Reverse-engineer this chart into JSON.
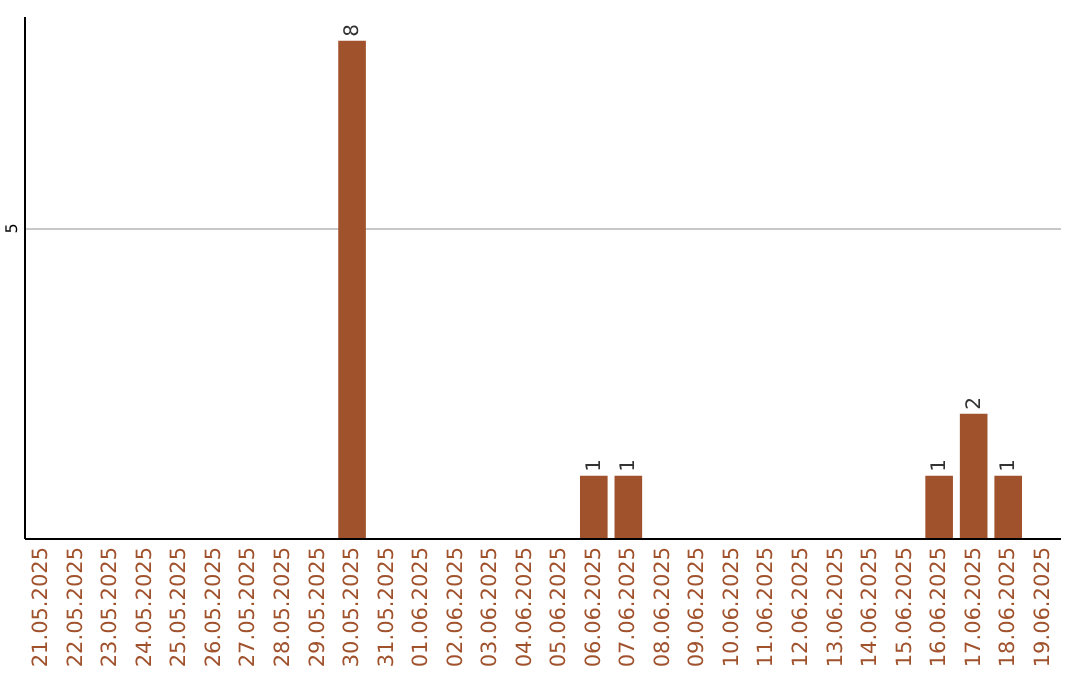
{
  "chart_data": {
    "type": "bar",
    "categories": [
      "21.05.2025",
      "22.05.2025",
      "23.05.2025",
      "24.05.2025",
      "25.05.2025",
      "26.05.2025",
      "27.05.2025",
      "28.05.2025",
      "29.05.2025",
      "30.05.2025",
      "31.05.2025",
      "01.06.2025",
      "02.06.2025",
      "03.06.2025",
      "04.06.2025",
      "05.06.2025",
      "06.06.2025",
      "07.06.2025",
      "08.06.2025",
      "09.06.2025",
      "10.06.2025",
      "11.06.2025",
      "12.06.2025",
      "13.06.2025",
      "14.06.2025",
      "15.06.2025",
      "16.06.2025",
      "17.06.2025",
      "18.06.2025",
      "19.06.2025"
    ],
    "values": [
      0,
      0,
      0,
      0,
      0,
      0,
      0,
      0,
      0,
      8,
      0,
      0,
      0,
      0,
      0,
      0,
      1,
      1,
      0,
      0,
      0,
      0,
      0,
      0,
      0,
      0,
      1,
      2,
      1,
      0
    ],
    "value_labels": [
      null,
      null,
      null,
      null,
      null,
      null,
      null,
      null,
      null,
      "8",
      null,
      null,
      null,
      null,
      null,
      null,
      "1",
      "1",
      null,
      null,
      null,
      null,
      null,
      null,
      null,
      null,
      "1",
      "2",
      "1",
      null
    ],
    "color": "#a0522d",
    "ylim": [
      0,
      8.4
    ],
    "yticks": [
      5
    ],
    "grid": "y"
  }
}
